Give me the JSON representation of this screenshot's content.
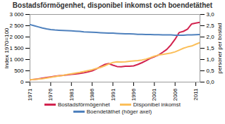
{
  "chart_data": {
    "type": "line",
    "title": "Bostadsförmögenhet, disponibel inkomst och boendetäthet",
    "y_label": "Index 1970=100",
    "y2_label": "personer per bostad",
    "x": [
      1971,
      1972,
      1973,
      1974,
      1975,
      1976,
      1977,
      1978,
      1979,
      1980,
      1981,
      1982,
      1983,
      1984,
      1985,
      1986,
      1987,
      1988,
      1989,
      1990,
      1991,
      1992,
      1993,
      1994,
      1995,
      1996,
      1997,
      1998,
      1999,
      2000,
      2001,
      2002,
      2003,
      2004,
      2005,
      2006,
      2007,
      2008,
      2009,
      2010,
      2011,
      2012
    ],
    "xlim": [
      1971,
      2012
    ],
    "xticks": [
      1971,
      1976,
      1981,
      1986,
      1991,
      1996,
      2001,
      2006,
      2011
    ],
    "ylim": [
      0,
      3000
    ],
    "yticks": [
      0,
      500,
      {
        "value": 1000,
        "label": "1 000"
      },
      {
        "value": 1500,
        "label": "1 500"
      },
      {
        "value": 2000,
        "label": "2 000"
      },
      {
        "value": 2500,
        "label": "2 500"
      },
      {
        "value": 3000,
        "label": "3 000"
      }
    ],
    "y2lim": [
      0,
      3
    ],
    "y2ticks": [
      {
        "value": 0,
        "label": "0,0"
      },
      {
        "value": 0.5,
        "label": "0,5"
      },
      {
        "value": 1,
        "label": "1,0"
      },
      {
        "value": 1.5,
        "label": "1,5"
      },
      {
        "value": 2,
        "label": "2,0"
      },
      {
        "value": 2.5,
        "label": "2,5"
      },
      {
        "value": 3,
        "label": "3,0"
      }
    ],
    "grid": false,
    "legend": "bottom",
    "series": [
      {
        "name": "Bostadsförmögenhet",
        "color": "#d2234f",
        "values": [
          100,
          120,
          140,
          170,
          200,
          230,
          260,
          280,
          300,
          320,
          340,
          360,
          380,
          410,
          450,
          500,
          580,
          680,
          780,
          820,
          750,
          690,
          680,
          700,
          700,
          720,
          780,
          860,
          950,
          1050,
          1120,
          1200,
          1320,
          1450,
          1650,
          1900,
          2200,
          2250,
          2350,
          2580,
          2620,
          2650
        ]
      },
      {
        "name": "Disponibel inkomst",
        "color": "#fbbf5a",
        "values": [
          100,
          115,
          130,
          150,
          180,
          210,
          240,
          270,
          300,
          340,
          370,
          400,
          430,
          470,
          510,
          550,
          600,
          650,
          720,
          800,
          870,
          900,
          890,
          900,
          920,
          940,
          950,
          980,
          1020,
          1080,
          1150,
          1200,
          1230,
          1260,
          1290,
          1340,
          1420,
          1500,
          1560,
          1600,
          1680,
          1750
        ]
      },
      {
        "name": "Boendetäthet (höger axel)",
        "color": "#4f81bd",
        "axis": "y2",
        "values": [
          2.55,
          2.5,
          2.45,
          2.4,
          2.36,
          2.33,
          2.31,
          2.3,
          2.29,
          2.28,
          2.27,
          2.26,
          2.25,
          2.23,
          2.22,
          2.21,
          2.2,
          2.19,
          2.18,
          2.17,
          2.17,
          2.16,
          2.15,
          2.14,
          2.14,
          2.13,
          2.12,
          2.12,
          2.11,
          2.11,
          2.1,
          2.1,
          2.09,
          2.09,
          2.09,
          2.08,
          2.08,
          2.08,
          2.09,
          2.09,
          2.1,
          2.11
        ]
      }
    ]
  }
}
